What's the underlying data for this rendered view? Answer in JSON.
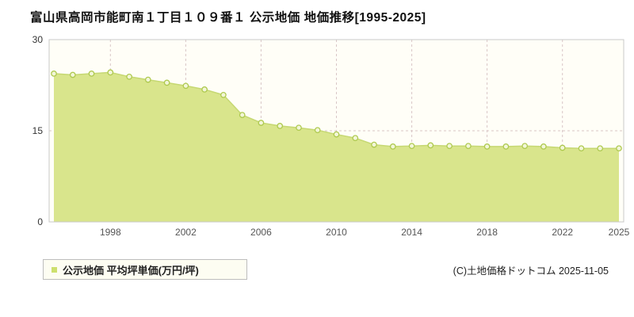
{
  "page": {
    "title": "富山県高岡市能町南１丁目１０９番１  公示地価  地価推移[1995-2025]",
    "copyright": "(C)土地価格ドットコム 2025-11-05"
  },
  "legend": {
    "label": "公示地価  平均坪単価(万円/坪)"
  },
  "chart_data": {
    "type": "area",
    "title": "富山県高岡市能町南１丁目１０９番１ 公示地価 地価推移[1995-2025]",
    "xlabel": "",
    "ylabel": "平均坪単価(万円/坪)",
    "x": [
      1995,
      1996,
      1997,
      1998,
      1999,
      2000,
      2001,
      2002,
      2003,
      2004,
      2005,
      2006,
      2007,
      2008,
      2009,
      2010,
      2011,
      2012,
      2013,
      2014,
      2015,
      2016,
      2017,
      2018,
      2019,
      2020,
      2021,
      2022,
      2023,
      2024,
      2025
    ],
    "values": [
      24.4,
      24.2,
      24.4,
      24.6,
      23.9,
      23.4,
      22.9,
      22.4,
      21.8,
      20.9,
      17.6,
      16.3,
      15.8,
      15.5,
      15.1,
      14.4,
      13.8,
      12.7,
      12.4,
      12.5,
      12.6,
      12.5,
      12.5,
      12.4,
      12.4,
      12.5,
      12.4,
      12.2,
      12.1,
      12.1,
      12.1
    ],
    "ylim": [
      0,
      30
    ],
    "y_ticks": [
      0,
      15,
      30
    ],
    "x_tick_years": [
      1998,
      2002,
      2006,
      2010,
      2014,
      2018,
      2022,
      2025
    ],
    "grid_years": [
      1998,
      2002,
      2006,
      2010,
      2014,
      2018,
      2022
    ],
    "grid": "dashed",
    "legend_position": "bottom-left",
    "colors": {
      "area": "#d9e58c",
      "line": "#c6d873",
      "marker_fill": "#f2f6d8",
      "marker_stroke": "#aec94e",
      "grid": "#d9c6c6",
      "border": "#c9c9c9",
      "plot_bg": "#fffef7"
    }
  }
}
